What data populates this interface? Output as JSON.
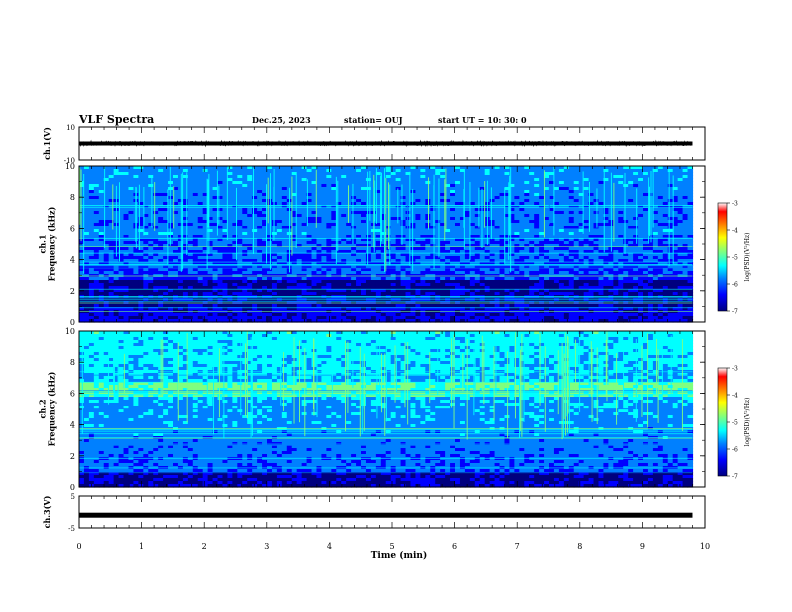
{
  "header": {
    "title": "VLF Spectra",
    "date": "Dec.25, 2023",
    "station": "station= OUJ",
    "start": "start  UT  =   10: 30: 0"
  },
  "colors": {
    "spectrogram_scale": [
      "#00007f",
      "#0000ff",
      "#0080ff",
      "#00ffff",
      "#7fff7f",
      "#ffff00",
      "#ff8000",
      "#ff0000",
      "#ffffff"
    ],
    "trace": "#000000"
  },
  "chart_data": [
    {
      "type": "line",
      "panel": "ch1-waveform",
      "ylabel": "ch.1(V)",
      "ylim": [
        -10,
        10
      ],
      "yticks": [
        "10",
        "-10"
      ],
      "xlim": [
        0,
        10
      ],
      "series": [
        {
          "x": [
            0,
            9.8
          ],
          "y": [
            0,
            0
          ]
        }
      ]
    },
    {
      "type": "heatmap",
      "panel": "ch1-spectrogram",
      "ylabel": "ch.1\nFrequency (kHz)",
      "ylim": [
        0,
        10
      ],
      "yticks": [
        "0",
        "2",
        "4",
        "6",
        "8",
        "10"
      ],
      "xlim": [
        0,
        10
      ],
      "x_extent": [
        0,
        9.8
      ],
      "colorbar": {
        "label": "log(PSD)(V²/Hz)",
        "range": [
          -7,
          -3
        ],
        "ticks": [
          "-3",
          "-4",
          "-5",
          "-6",
          "-7"
        ]
      }
    },
    {
      "type": "heatmap",
      "panel": "ch2-spectrogram",
      "ylabel": "ch.2\nFrequency (kHz)",
      "ylim": [
        0,
        10
      ],
      "yticks": [
        "0",
        "2",
        "4",
        "6",
        "8",
        "10"
      ],
      "xlim": [
        0,
        10
      ],
      "x_extent": [
        0,
        9.8
      ],
      "colorbar": {
        "label": "log(PSD)(V²/Hz)",
        "range": [
          -7,
          -3
        ],
        "ticks": [
          "-3",
          "-4",
          "-5",
          "-6",
          "-7"
        ]
      }
    },
    {
      "type": "line",
      "panel": "ch3-waveform",
      "ylabel": "ch.3(V)",
      "ylim": [
        -5,
        5
      ],
      "yticks": [
        "5",
        "-5"
      ],
      "xlim": [
        0,
        10
      ],
      "series": [
        {
          "x": [
            0,
            9.8
          ],
          "y": [
            -1,
            -1
          ]
        }
      ]
    }
  ],
  "xaxis": {
    "label": "Time (min)",
    "ticks": [
      "0",
      "1",
      "2",
      "3",
      "4",
      "5",
      "6",
      "7",
      "8",
      "9",
      "10"
    ]
  }
}
